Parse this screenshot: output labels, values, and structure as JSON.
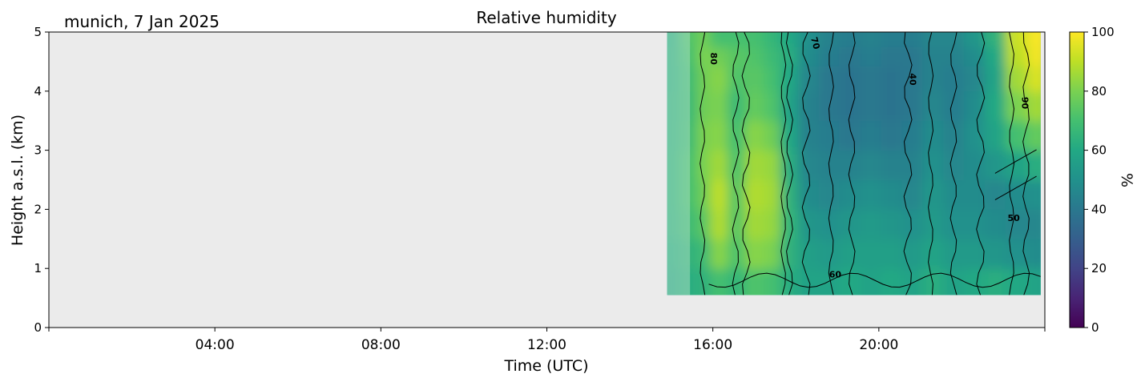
{
  "chart_data": {
    "type": "heatmap",
    "location_date": "munich, 7 Jan 2025",
    "title": "Relative humidity",
    "xlabel": "Time (UTC)",
    "ylabel": "Height a.s.l. (km)",
    "x_ticks": [
      "04:00",
      "08:00",
      "12:00",
      "16:00",
      "20:00"
    ],
    "x_tick_hours": [
      4,
      8,
      12,
      16,
      20
    ],
    "xlim_hours": [
      0,
      24
    ],
    "y_ticks": [
      "0",
      "1",
      "2",
      "3",
      "4",
      "5"
    ],
    "ylim_km": [
      0,
      5
    ],
    "colorbar": {
      "label": "%",
      "ticks": [
        "0",
        "20",
        "40",
        "60",
        "80",
        "100"
      ],
      "range": [
        0,
        100
      ],
      "colormap": "viridis"
    },
    "data_extent": {
      "time_start_hours": 14.9,
      "time_end_hours": 23.9,
      "height_min_km": 0.55,
      "height_max_km": 5.0
    },
    "contour_labels": [
      "80",
      "70",
      "40",
      "90",
      "50",
      "60"
    ],
    "background_color": "#ebebeb",
    "humidity_profile": [
      {
        "t": 14.95,
        "rh": [
          58,
          60,
          62,
          63,
          63,
          62,
          62,
          61,
          61,
          60
        ]
      },
      {
        "t": 15.45,
        "rh": [
          62,
          64,
          68,
          70,
          70,
          68,
          67,
          68,
          70,
          72
        ]
      },
      {
        "t": 15.75,
        "rh": [
          64,
          68,
          74,
          78,
          80,
          80,
          78,
          78,
          80,
          78
        ]
      },
      {
        "t": 16.15,
        "rh": [
          70,
          82,
          88,
          90,
          86,
          82,
          80,
          82,
          78,
          70
        ]
      },
      {
        "t": 16.55,
        "rh": [
          66,
          72,
          74,
          74,
          72,
          70,
          68,
          72,
          74,
          70
        ]
      },
      {
        "t": 17.0,
        "rh": [
          72,
          82,
          86,
          88,
          86,
          82,
          76,
          74,
          72,
          70
        ]
      },
      {
        "t": 17.45,
        "rh": [
          70,
          80,
          84,
          86,
          84,
          78,
          72,
          70,
          68,
          66
        ]
      },
      {
        "t": 17.8,
        "rh": [
          62,
          64,
          66,
          64,
          62,
          60,
          58,
          60,
          62,
          60
        ]
      },
      {
        "t": 18.3,
        "rh": [
          58,
          56,
          52,
          48,
          46,
          44,
          44,
          46,
          48,
          50
        ]
      },
      {
        "t": 18.8,
        "rh": [
          58,
          54,
          50,
          46,
          44,
          42,
          40,
          40,
          42,
          44
        ]
      },
      {
        "t": 19.3,
        "rh": [
          60,
          56,
          52,
          48,
          44,
          40,
          38,
          38,
          40,
          42
        ]
      },
      {
        "t": 19.8,
        "rh": [
          58,
          56,
          54,
          50,
          46,
          42,
          40,
          40,
          42,
          44
        ]
      },
      {
        "t": 20.3,
        "rh": [
          60,
          56,
          52,
          48,
          44,
          40,
          38,
          38,
          40,
          42
        ]
      },
      {
        "t": 20.8,
        "rh": [
          58,
          54,
          50,
          46,
          44,
          42,
          40,
          40,
          40,
          42
        ]
      },
      {
        "t": 21.3,
        "rh": [
          62,
          58,
          54,
          52,
          50,
          48,
          46,
          44,
          44,
          46
        ]
      },
      {
        "t": 21.8,
        "rh": [
          58,
          54,
          50,
          48,
          46,
          44,
          42,
          42,
          44,
          46
        ]
      },
      {
        "t": 22.3,
        "rh": [
          60,
          54,
          50,
          48,
          48,
          50,
          48,
          46,
          48,
          52
        ]
      },
      {
        "t": 22.8,
        "rh": [
          62,
          52,
          48,
          46,
          52,
          58,
          60,
          58,
          60,
          64
        ]
      },
      {
        "t": 23.3,
        "rh": [
          60,
          50,
          46,
          48,
          58,
          70,
          80,
          86,
          90,
          92
        ]
      },
      {
        "t": 23.85,
        "rh": [
          58,
          48,
          46,
          50,
          62,
          76,
          86,
          94,
          98,
          99
        ]
      }
    ],
    "profile_heights_km": [
      0.75,
      1.25,
      1.75,
      2.25,
      2.75,
      3.25,
      3.75,
      4.25,
      4.6,
      4.9
    ]
  }
}
